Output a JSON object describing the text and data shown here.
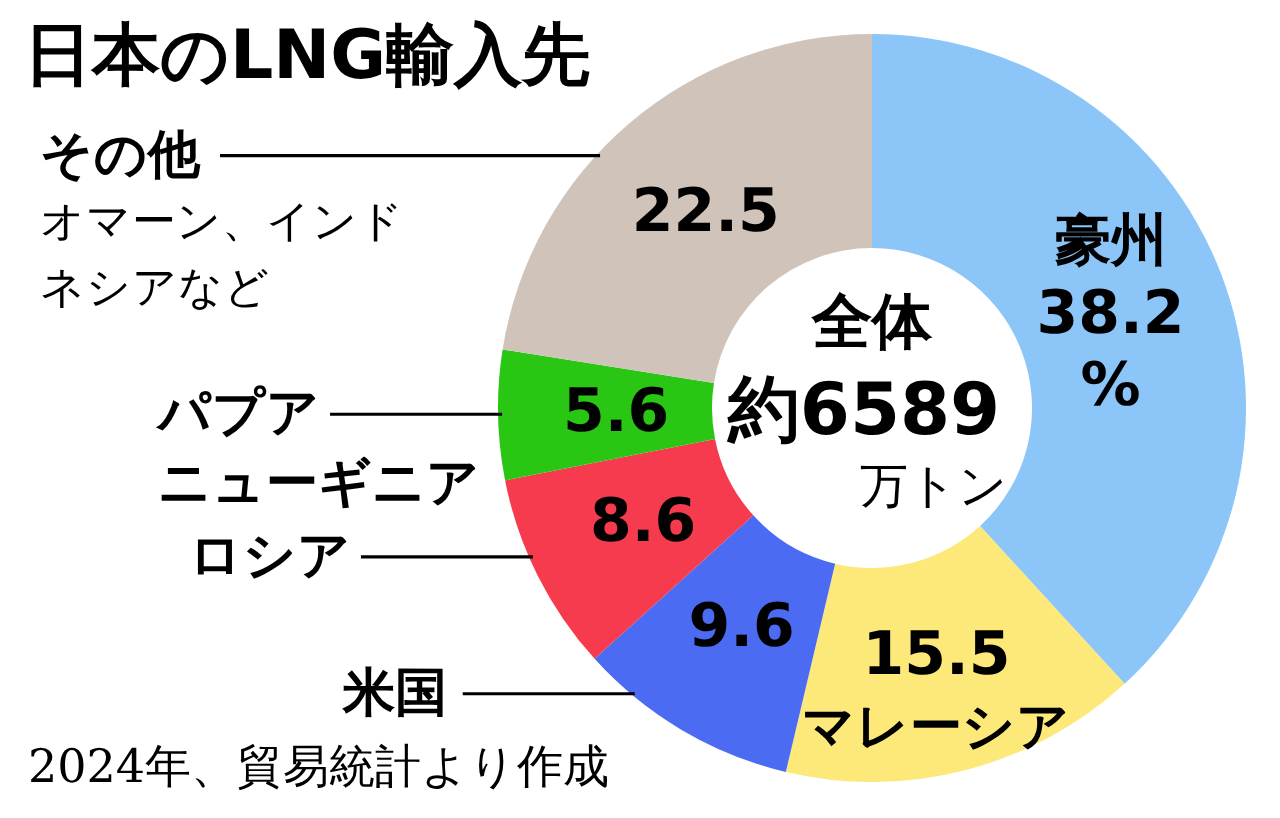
{
  "chart_data": {
    "type": "donut",
    "title": "日本のLNG輸入先",
    "categories": [
      "豪州",
      "マレーシア",
      "米国",
      "ロシア",
      "パプアニューギニア",
      "その他"
    ],
    "values": [
      38.2,
      15.5,
      9.6,
      8.6,
      5.6,
      22.5
    ],
    "colors": [
      "#8cc6f8",
      "#fde87a",
      "#4b6cf2",
      "#f73b4e",
      "#2ac614",
      "#d0c4ba"
    ],
    "value_labels": [
      "38.2%",
      "15.5",
      "9.6",
      "8.6",
      "5.6",
      "22.5"
    ],
    "annotations": [
      {
        "text": "オマーン、インドネシアなど",
        "x": "その他"
      },
      "全体",
      "約6589",
      "万トン",
      "2024年、貿易統計より作成"
    ]
  }
}
